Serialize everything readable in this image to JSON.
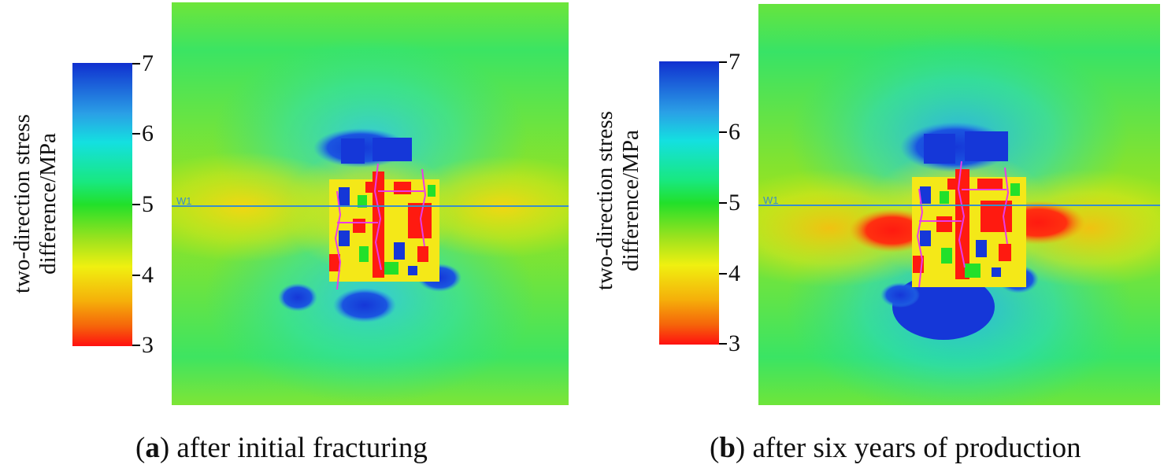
{
  "figure": {
    "panels": [
      {
        "id": "a",
        "label": "a",
        "caption": "after initial fracturing",
        "colorbar_title_line1": "two-direction stress",
        "colorbar_title_line2": "difference/MPa",
        "well_label": "W1"
      },
      {
        "id": "b",
        "label": "b",
        "caption": "after six years of production",
        "colorbar_title_line1": "two-direction stress",
        "colorbar_title_line2": "difference/MPa",
        "well_label": "W1"
      }
    ]
  },
  "chart_data": [
    {
      "type": "heatmap",
      "title": "(a) after initial fracturing",
      "colorbar_label": "two-direction stress difference/MPa",
      "colorbar_range": [
        3,
        7
      ],
      "colorbar_ticks": [
        "7",
        "6",
        "5",
        "4",
        "3"
      ],
      "colormap_stops": [
        {
          "value": 7,
          "color": "#1030d0"
        },
        {
          "value": 6,
          "color": "#14e0e0"
        },
        {
          "value": 5,
          "color": "#22e02a"
        },
        {
          "value": 4,
          "color": "#f0f010"
        },
        {
          "value": 3,
          "color": "#ff1010"
        }
      ],
      "well": "W1",
      "background_value": 5.3
    },
    {
      "type": "heatmap",
      "title": "(b) after six years of production",
      "colorbar_label": "two-direction stress difference/MPa",
      "colorbar_range": [
        3,
        7
      ],
      "colorbar_ticks": [
        "7",
        "6",
        "5",
        "4",
        "3"
      ],
      "colormap_stops": [
        {
          "value": 7,
          "color": "#1030d0"
        },
        {
          "value": 6,
          "color": "#14e0e0"
        },
        {
          "value": 5,
          "color": "#22e02a"
        },
        {
          "value": 4,
          "color": "#f0f010"
        },
        {
          "value": 3,
          "color": "#ff1010"
        }
      ],
      "well": "W1",
      "background_value": 5.3
    }
  ]
}
